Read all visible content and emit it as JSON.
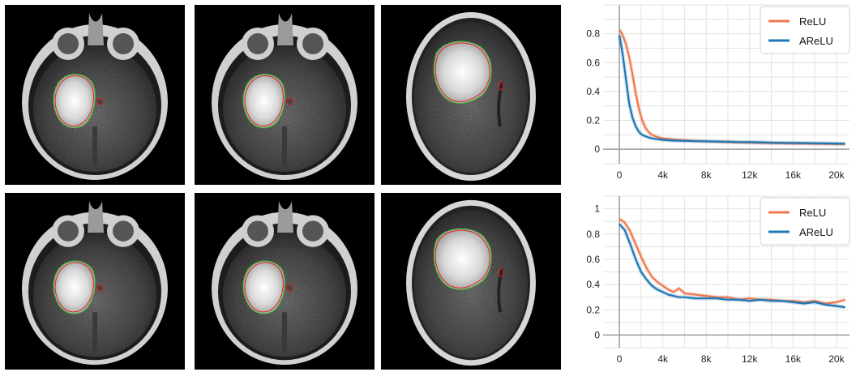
{
  "images": [
    {
      "row": 1,
      "col": 1
    },
    {
      "row": 1,
      "col": 2
    },
    {
      "row": 1,
      "col": 3
    },
    {
      "row": 2,
      "col": 1
    },
    {
      "row": 2,
      "col": 2
    },
    {
      "row": 2,
      "col": 3
    }
  ],
  "colors": {
    "relu": "#f07850",
    "arelu": "#1f77b4",
    "ground_truth": "#27c21b",
    "prediction": "#e4201e"
  },
  "chart_data": [
    {
      "type": "line",
      "title": "",
      "xlabel": "",
      "ylabel": "",
      "xlim": [
        -1500,
        21200
      ],
      "ylim": [
        -0.1,
        1.0
      ],
      "xticks": [
        0,
        4000,
        8000,
        12000,
        16000,
        20000
      ],
      "xtick_labels": [
        "0",
        "4k",
        "8k",
        "12k",
        "16k",
        "20k"
      ],
      "yticks": [
        0,
        0.2,
        0.4,
        0.6,
        0.8
      ],
      "ytick_labels": [
        "0",
        "0.2",
        "0.4",
        "0.6",
        "0.8"
      ],
      "grid": true,
      "legend_position": "top-right",
      "series": [
        {
          "name": "ReLU",
          "color": "#f07850",
          "x": [
            0,
            300,
            600,
            900,
            1200,
            1500,
            1800,
            2100,
            2400,
            2700,
            3000,
            3500,
            4000,
            5000,
            6000,
            7000,
            8000,
            9000,
            10000,
            11000,
            12000,
            13000,
            14000,
            15000,
            16000,
            17000,
            18000,
            19000,
            20000,
            20800
          ],
          "y": [
            0.83,
            0.79,
            0.73,
            0.64,
            0.52,
            0.39,
            0.28,
            0.2,
            0.15,
            0.12,
            0.1,
            0.085,
            0.075,
            0.068,
            0.062,
            0.058,
            0.055,
            0.052,
            0.05,
            0.048,
            0.045,
            0.044,
            0.042,
            0.041,
            0.04,
            0.039,
            0.038,
            0.037,
            0.036,
            0.035
          ]
        },
        {
          "name": "AReLU",
          "color": "#1f77b4",
          "x": [
            0,
            300,
            600,
            900,
            1200,
            1500,
            1800,
            2100,
            2400,
            2700,
            3000,
            3500,
            4000,
            5000,
            6000,
            7000,
            8000,
            9000,
            10000,
            11000,
            12000,
            13000,
            14000,
            15000,
            16000,
            17000,
            18000,
            19000,
            20000,
            20800
          ],
          "y": [
            0.79,
            0.66,
            0.49,
            0.32,
            0.22,
            0.16,
            0.12,
            0.1,
            0.09,
            0.082,
            0.075,
            0.07,
            0.065,
            0.06,
            0.058,
            0.056,
            0.055,
            0.054,
            0.052,
            0.05,
            0.05,
            0.048,
            0.046,
            0.045,
            0.044,
            0.043,
            0.042,
            0.041,
            0.04,
            0.039
          ]
        }
      ]
    },
    {
      "type": "line",
      "title": "",
      "xlabel": "",
      "ylabel": "",
      "xlim": [
        -1500,
        21200
      ],
      "ylim": [
        -0.1,
        1.1
      ],
      "xticks": [
        0,
        4000,
        8000,
        12000,
        16000,
        20000
      ],
      "xtick_labels": [
        "0",
        "4k",
        "8k",
        "12k",
        "16k",
        "20k"
      ],
      "yticks": [
        0,
        0.2,
        0.4,
        0.6,
        0.8,
        1
      ],
      "ytick_labels": [
        "0",
        "0.2",
        "0.4",
        "0.6",
        "0.8",
        "1"
      ],
      "grid": true,
      "legend_position": "top-right",
      "series": [
        {
          "name": "ReLU",
          "color": "#f07850",
          "x": [
            0,
            500,
            1000,
            1500,
            2000,
            2500,
            3000,
            3500,
            4000,
            4500,
            5000,
            5500,
            6000,
            7000,
            8000,
            9000,
            10000,
            11000,
            12000,
            13000,
            14000,
            15000,
            16000,
            17000,
            18000,
            19000,
            20000,
            20800
          ],
          "y": [
            0.92,
            0.89,
            0.82,
            0.72,
            0.62,
            0.53,
            0.46,
            0.42,
            0.39,
            0.36,
            0.34,
            0.37,
            0.33,
            0.32,
            0.31,
            0.3,
            0.3,
            0.28,
            0.29,
            0.28,
            0.28,
            0.27,
            0.27,
            0.26,
            0.27,
            0.25,
            0.26,
            0.28
          ]
        },
        {
          "name": "AReLU",
          "color": "#1f77b4",
          "x": [
            0,
            500,
            1000,
            1500,
            2000,
            2500,
            3000,
            3500,
            4000,
            4500,
            5000,
            5500,
            6000,
            7000,
            8000,
            9000,
            10000,
            11000,
            12000,
            13000,
            14000,
            15000,
            16000,
            17000,
            18000,
            19000,
            20000,
            20800
          ],
          "y": [
            0.88,
            0.83,
            0.72,
            0.6,
            0.5,
            0.44,
            0.39,
            0.36,
            0.34,
            0.32,
            0.31,
            0.3,
            0.3,
            0.29,
            0.29,
            0.29,
            0.28,
            0.28,
            0.27,
            0.28,
            0.27,
            0.27,
            0.26,
            0.25,
            0.26,
            0.24,
            0.23,
            0.22
          ]
        }
      ]
    }
  ]
}
